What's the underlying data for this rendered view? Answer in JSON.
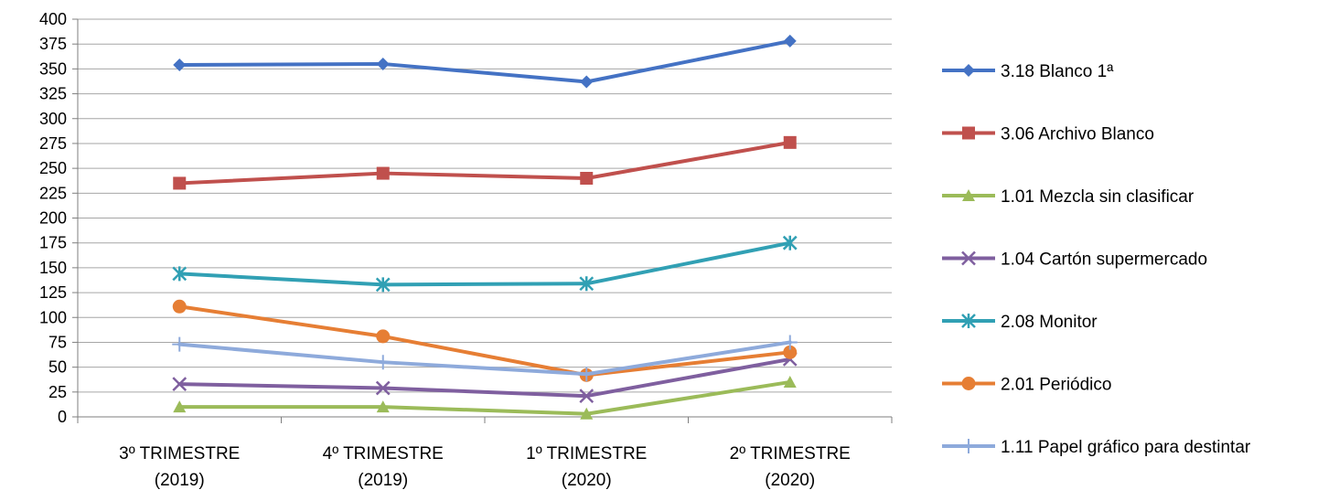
{
  "chart_data": {
    "type": "line",
    "categories": [
      [
        "3º TRIMESTRE",
        "(2019)"
      ],
      [
        "4º TRIMESTRE",
        "(2019)"
      ],
      [
        "1º TRIMESTRE",
        "(2020)"
      ],
      [
        "2º TRIMESTRE",
        "(2020)"
      ]
    ],
    "ylim": [
      0,
      400
    ],
    "yticks": [
      0,
      25,
      50,
      75,
      100,
      125,
      150,
      175,
      200,
      225,
      250,
      275,
      300,
      325,
      350,
      375,
      400
    ],
    "grid": true,
    "legend_position": "right",
    "series": [
      {
        "name": "3.18 Blanco 1ª",
        "color": "#4472C4",
        "marker": "diamond",
        "values": [
          354,
          355,
          337,
          378
        ]
      },
      {
        "name": "3.06 Archivo Blanco",
        "color": "#C0504D",
        "marker": "square",
        "values": [
          235,
          245,
          240,
          276
        ]
      },
      {
        "name": "1.01 Mezcla sin clasificar",
        "color": "#9BBB59",
        "marker": "triangle",
        "values": [
          10,
          10,
          3,
          35
        ]
      },
      {
        "name": "1.04 Cartón supermercado",
        "color": "#7F5F9F",
        "marker": "x",
        "values": [
          33,
          29,
          21,
          58
        ]
      },
      {
        "name": "2.08 Monitor",
        "color": "#31A0B4",
        "marker": "star",
        "values": [
          144,
          133,
          134,
          175
        ]
      },
      {
        "name": "2.01 Periódico",
        "color": "#E67E34",
        "marker": "circle",
        "values": [
          111,
          81,
          42,
          65
        ]
      },
      {
        "name": "1.11 Papel gráfico para destintar",
        "color": "#8EAADB",
        "marker": "plus",
        "values": [
          73,
          55,
          43,
          75
        ]
      }
    ]
  }
}
